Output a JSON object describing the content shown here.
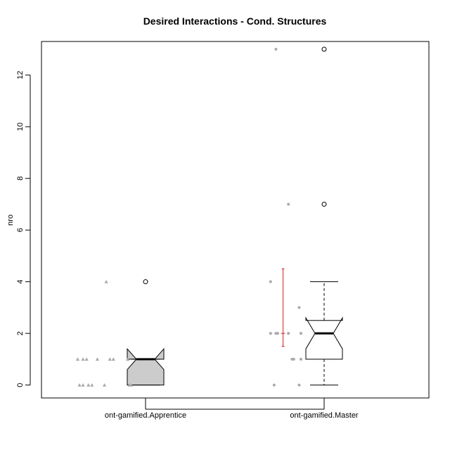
{
  "chart_data": {
    "type": "boxplot",
    "title": "Desired Interactions - Cond. Structures",
    "xlabel": "",
    "ylabel": "nro",
    "ylim": [
      -0.5,
      13.3
    ],
    "yticks": [
      0,
      2,
      4,
      6,
      8,
      10,
      12
    ],
    "categories": [
      "ont-gamified.Apprentice",
      "ont-gamified.Master"
    ],
    "boxes": [
      {
        "category": "ont-gamified.Apprentice",
        "fill": "#cccccc",
        "min": 0,
        "q1": 0,
        "median": 1,
        "q3": 1,
        "max": 1,
        "notch_low": 0.6,
        "notch_high": 1.4,
        "outliers": [
          4
        ]
      },
      {
        "category": "ont-gamified.Master",
        "fill": "#ffffff",
        "min": 0,
        "q1": 1,
        "median": 2,
        "q3": 2.5,
        "max": 4,
        "notch_low": 1.4,
        "notch_high": 2.6,
        "outliers": [
          7,
          13
        ]
      }
    ],
    "strip_points": [
      {
        "category": "ont-gamified.Apprentice",
        "marker": "triangle",
        "color": "#aaaaaa",
        "points": [
          {
            "x": -0.38,
            "y": 1
          },
          {
            "x": -0.35,
            "y": 1
          },
          {
            "x": -0.33,
            "y": 1
          },
          {
            "x": -0.27,
            "y": 1
          },
          {
            "x": -0.2,
            "y": 1
          },
          {
            "x": -0.18,
            "y": 1
          },
          {
            "x": -0.1,
            "y": 1
          },
          {
            "x": -0.37,
            "y": 0
          },
          {
            "x": -0.35,
            "y": 0
          },
          {
            "x": -0.32,
            "y": 0
          },
          {
            "x": -0.3,
            "y": 0
          },
          {
            "x": -0.23,
            "y": 0
          },
          {
            "x": -0.09,
            "y": 0
          },
          {
            "x": -0.08,
            "y": 0
          },
          {
            "x": -0.22,
            "y": 4
          }
        ]
      },
      {
        "category": "ont-gamified.Master",
        "marker": "circle",
        "color": "#aaaaaa",
        "points": [
          {
            "x": -0.27,
            "y": 13
          },
          {
            "x": -0.2,
            "y": 7
          },
          {
            "x": -0.3,
            "y": 4
          },
          {
            "x": -0.14,
            "y": 3
          },
          {
            "x": -0.3,
            "y": 2
          },
          {
            "x": -0.27,
            "y": 2
          },
          {
            "x": -0.26,
            "y": 2
          },
          {
            "x": -0.2,
            "y": 2
          },
          {
            "x": -0.13,
            "y": 2
          },
          {
            "x": -0.18,
            "y": 1
          },
          {
            "x": -0.17,
            "y": 1
          },
          {
            "x": -0.13,
            "y": 1
          },
          {
            "x": -0.28,
            "y": 0
          },
          {
            "x": -0.14,
            "y": 0
          }
        ]
      }
    ],
    "errorbars": [
      {
        "category": "ont-gamified.Master",
        "x": -0.23,
        "mean": 2,
        "low": 1.5,
        "high": 4.5,
        "color": "#cc2222"
      }
    ],
    "grid": false,
    "legend": "none"
  }
}
